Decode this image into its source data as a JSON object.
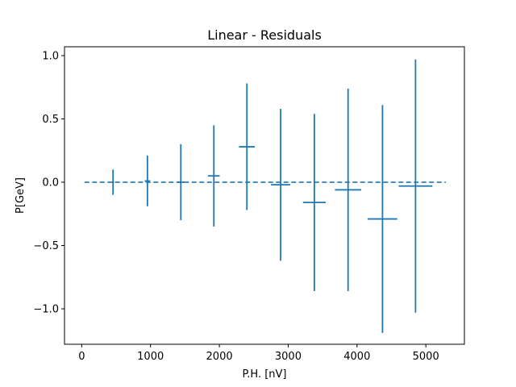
{
  "chart_data": {
    "type": "errorbar",
    "title": "Linear - Residuals",
    "xlabel": "P.H. [nV]",
    "ylabel": "P[GeV]",
    "xlim": [
      -250,
      5560
    ],
    "ylim": [
      -1.28,
      1.07
    ],
    "xticks": [
      0,
      1000,
      2000,
      3000,
      4000,
      5000
    ],
    "yticks": [
      -1.0,
      -0.5,
      0.0,
      0.5,
      1.0
    ],
    "xtick_labels": [
      "0",
      "1000",
      "2000",
      "3000",
      "4000",
      "5000"
    ],
    "ytick_labels": [
      "−1.0",
      "−0.5",
      "0.0",
      "0.5",
      "1.0"
    ],
    "grid": false,
    "color": "#1f77b4",
    "reference_line": {
      "y": 0.0,
      "x_range": [
        40,
        5290
      ],
      "style": "dashed"
    },
    "series": [
      {
        "points": [
          {
            "x": 455,
            "y": 0.0,
            "xerr": 15,
            "yerr": 0.1
          },
          {
            "x": 955,
            "y": 0.01,
            "xerr": 40,
            "yerr": 0.2
          },
          {
            "x": 1440,
            "y": 0.0,
            "xerr": 50,
            "yerr": 0.3
          },
          {
            "x": 1920,
            "y": 0.05,
            "xerr": 85,
            "yerr": 0.4
          },
          {
            "x": 2400,
            "y": 0.28,
            "xerr": 115,
            "yerr": 0.5
          },
          {
            "x": 2890,
            "y": -0.02,
            "xerr": 140,
            "yerr": 0.6
          },
          {
            "x": 3380,
            "y": -0.16,
            "xerr": 165,
            "yerr": 0.7
          },
          {
            "x": 3870,
            "y": -0.06,
            "xerr": 190,
            "yerr": 0.8
          },
          {
            "x": 4370,
            "y": -0.29,
            "xerr": 215,
            "yerr": 0.9
          },
          {
            "x": 4850,
            "y": -0.03,
            "xerr": 245,
            "yerr": 1.0
          }
        ]
      }
    ]
  }
}
